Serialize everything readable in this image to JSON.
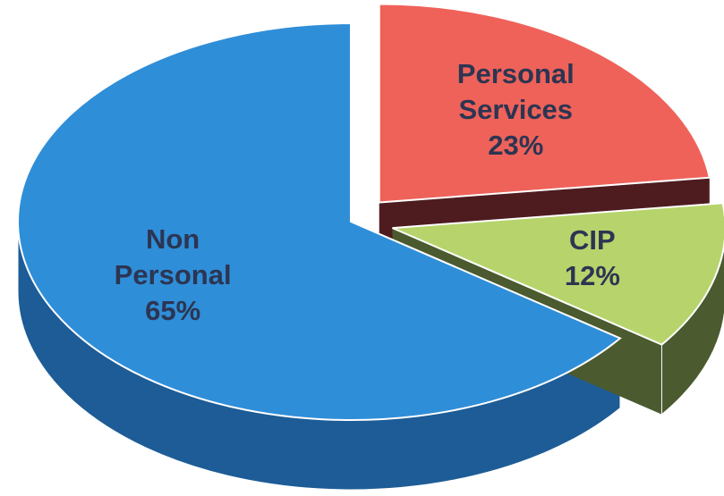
{
  "chart_data": {
    "type": "pie",
    "categories": [
      "Non Personal",
      "Personal Services",
      "CIP"
    ],
    "values": [
      65,
      23,
      12
    ],
    "value_labels": [
      "65%",
      "23%",
      "12%"
    ],
    "colors": [
      "#2f8ed8",
      "#ef6259",
      "#b7d46c"
    ],
    "side_colors": [
      "#1d5c96",
      "#4e1c1f",
      "#4b5a2f"
    ],
    "start_angle": 90,
    "explode": [
      0,
      1,
      1
    ]
  }
}
